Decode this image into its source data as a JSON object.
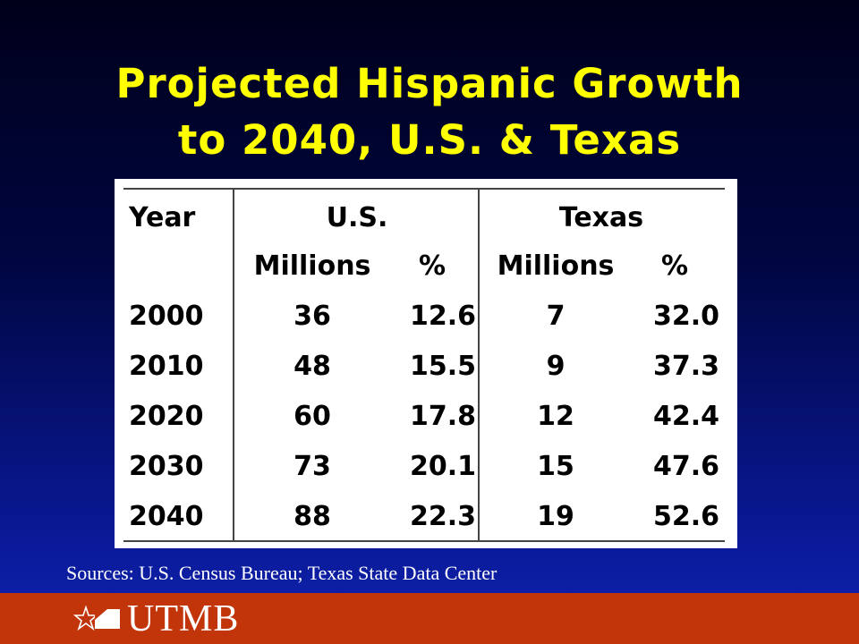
{
  "title": {
    "line1": "Projected Hispanic Growth",
    "line2": "to 2040, U.S. & Texas"
  },
  "table": {
    "header": {
      "year": "Year",
      "us": "U.S.",
      "texas": "Texas",
      "us_millions": "Millions",
      "us_percent": "%",
      "texas_millions": "Millions",
      "texas_percent": "%"
    },
    "rows": [
      {
        "year": "2000",
        "us_millions": "36",
        "us_percent": "12.6",
        "texas_millions": "7",
        "texas_percent": "32.0"
      },
      {
        "year": "2010",
        "us_millions": "48",
        "us_percent": "15.5",
        "texas_millions": "9",
        "texas_percent": "37.3"
      },
      {
        "year": "2020",
        "us_millions": "60",
        "us_percent": "17.8",
        "texas_millions": "12",
        "texas_percent": "42.4"
      },
      {
        "year": "2030",
        "us_millions": "73",
        "us_percent": "20.1",
        "texas_millions": "15",
        "texas_percent": "47.6"
      },
      {
        "year": "2040",
        "us_millions": "88",
        "us_percent": "22.3",
        "texas_millions": "19",
        "texas_percent": "52.6"
      }
    ]
  },
  "source": "Sources: U.S. Census Bureau; Texas State Data Center",
  "footer": {
    "logo_text": "UTMB",
    "logo_icon": "star-flag-logo-icon"
  },
  "colors": {
    "title": "#ffff00",
    "footer_band": "#c2350a",
    "background_top": "#00001a",
    "background_bottom": "#1024b0"
  }
}
